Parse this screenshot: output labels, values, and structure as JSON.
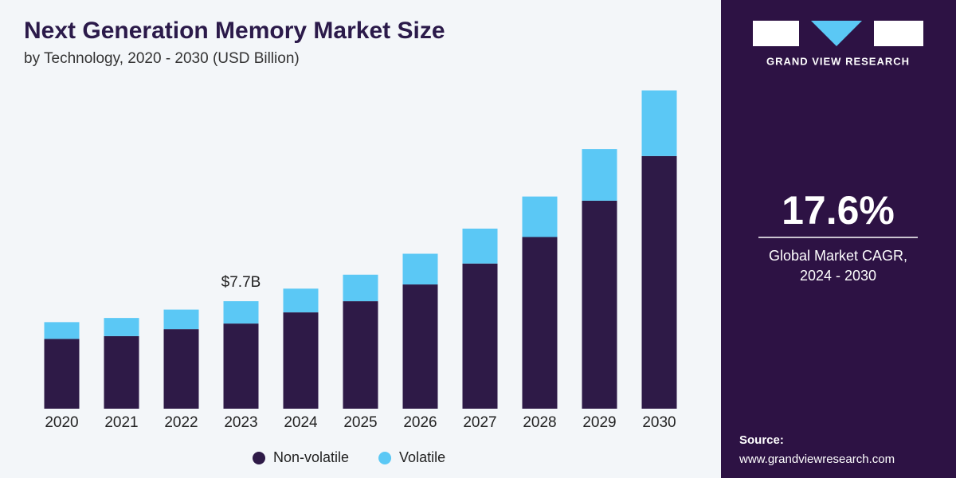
{
  "chart_data": {
    "type": "stacked-bar",
    "title": "Next Generation Memory Market Size",
    "subtitle": "by Technology, 2020 - 2030 (USD Billion)",
    "categories": [
      "2020",
      "2021",
      "2022",
      "2023",
      "2024",
      "2025",
      "2026",
      "2027",
      "2028",
      "2029",
      "2030"
    ],
    "series": [
      {
        "name": "Non-volatile",
        "color": "#2e1a47",
        "values": [
          5.0,
          5.2,
          5.7,
          6.1,
          6.9,
          7.7,
          8.9,
          10.4,
          12.3,
          14.9,
          18.1
        ]
      },
      {
        "name": "Volatile",
        "color": "#5bc8f5",
        "values": [
          1.2,
          1.3,
          1.4,
          1.6,
          1.7,
          1.9,
          2.2,
          2.5,
          2.9,
          3.7,
          4.7
        ]
      }
    ],
    "annotations": [
      {
        "x": "2023",
        "value": 7.7,
        "label": "$7.7B"
      }
    ],
    "ylim": [
      0,
      23
    ],
    "legend": "bottom"
  },
  "sidebar": {
    "brand": "GRAND VIEW RESEARCH",
    "cagr": "17.6%",
    "cagr_caption_1": "Global Market CAGR,",
    "cagr_caption_2": "2024 - 2030",
    "source_label": "Source:",
    "source_url": "www.grandviewresearch.com"
  }
}
